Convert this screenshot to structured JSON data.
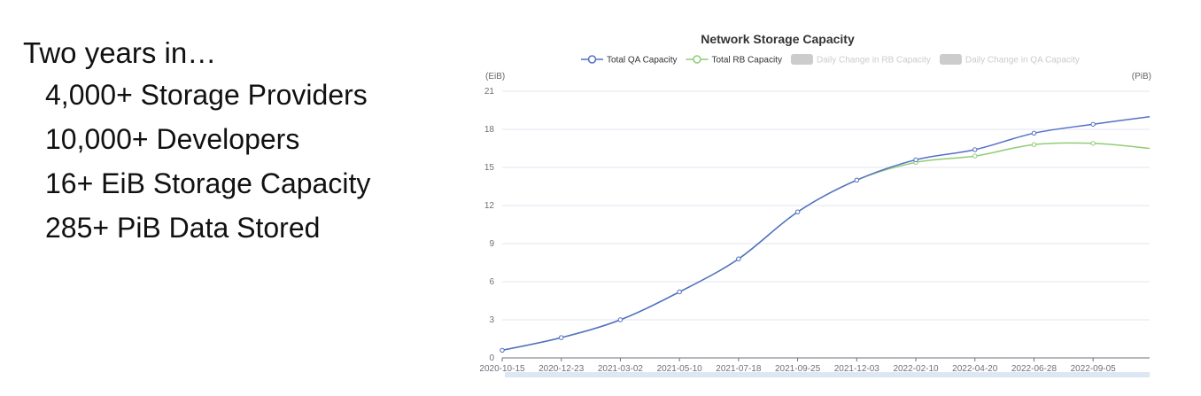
{
  "intro": {
    "heading": "Two years in…",
    "stats": [
      "4,000+ Storage Providers",
      "10,000+ Developers",
      "16+ EiB Storage Capacity",
      "285+ PiB Data Stored"
    ]
  },
  "chart_data": {
    "type": "line",
    "title": "Network Storage Capacity",
    "ylabel_left": "(EiB)",
    "ylabel_right": "(PiB)",
    "ylim": [
      0,
      21
    ],
    "yticks": [
      0,
      3,
      6,
      9,
      12,
      15,
      18,
      21
    ],
    "grid": true,
    "legend_position": "top-center",
    "xticks": [
      "2020-10-15",
      "2020-12-23",
      "2021-03-02",
      "2021-05-10",
      "2021-07-18",
      "2021-09-25",
      "2021-12-03",
      "2022-02-10",
      "2022-04-20",
      "2022-06-28",
      "2022-09-05"
    ],
    "x": [
      "2020-10-15",
      "2020-12-23",
      "2021-03-02",
      "2021-05-10",
      "2021-07-18",
      "2021-09-25",
      "2021-12-03",
      "2022-02-10",
      "2022-04-20",
      "2022-06-28",
      "2022-09-05",
      "2022-11-10"
    ],
    "series": [
      {
        "name": "Total QA Capacity",
        "color": "#5470c6",
        "values": [
          0.6,
          1.6,
          3.0,
          5.2,
          7.8,
          11.5,
          14.0,
          15.6,
          16.4,
          17.7,
          18.4,
          19.0
        ]
      },
      {
        "name": "Total RB Capacity",
        "color": "#91cc75",
        "values": [
          0.6,
          1.6,
          3.0,
          5.2,
          7.8,
          11.5,
          14.0,
          15.4,
          15.9,
          16.8,
          16.9,
          16.5
        ]
      }
    ],
    "legend": [
      {
        "name": "Total QA Capacity",
        "color": "#5470c6",
        "active": true,
        "kind": "line"
      },
      {
        "name": "Total RB Capacity",
        "color": "#91cc75",
        "active": true,
        "kind": "line"
      },
      {
        "name": "Daily Change in RB Capacity",
        "color": "#cccccc",
        "active": false,
        "kind": "bar"
      },
      {
        "name": "Daily Change in QA Capacity",
        "color": "#cccccc",
        "active": false,
        "kind": "bar"
      }
    ]
  }
}
